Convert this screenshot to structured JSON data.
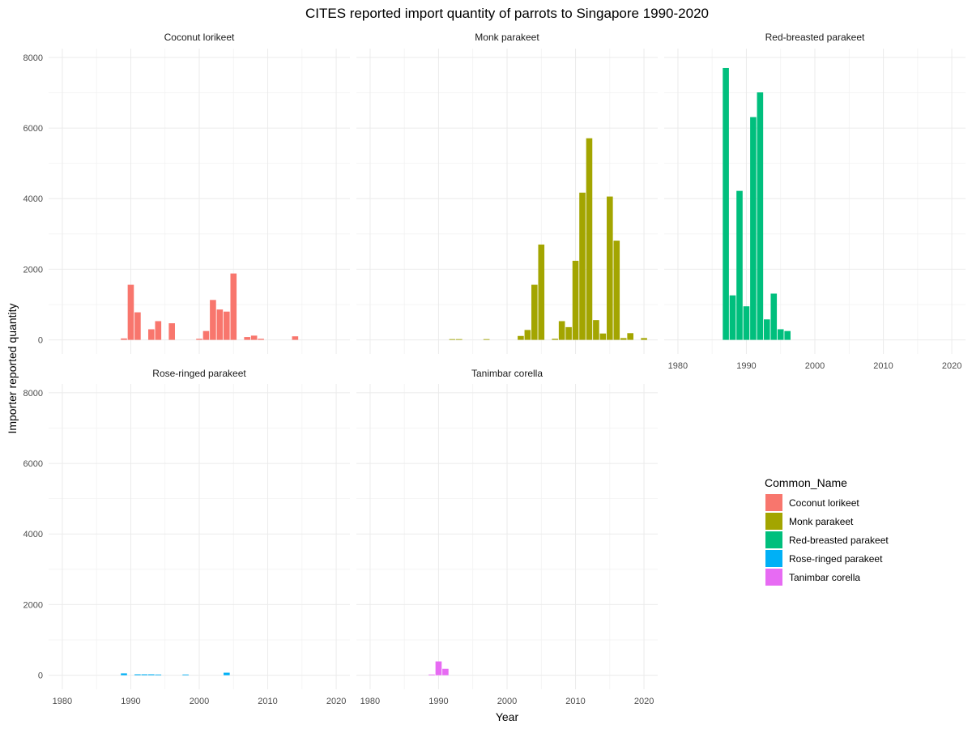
{
  "chart_data": {
    "type": "bar",
    "title": "CITES reported import quantity of parrots to Singapore 1990-2020",
    "xlabel": "Year",
    "ylabel": "Importer reported quantity",
    "xlim": [
      1978,
      2022
    ],
    "ylim": [
      0,
      8000
    ],
    "xticks": [
      1980,
      1990,
      2000,
      2010,
      2020
    ],
    "yticks": [
      0,
      2000,
      4000,
      6000,
      8000
    ],
    "grid": true,
    "legend_title": "Common_Name",
    "legend_position": "right",
    "series": [
      {
        "name": "Coconut lorikeet",
        "color": "#F8766D",
        "points": [
          [
            1989,
            40
          ],
          [
            1990,
            1560
          ],
          [
            1991,
            780
          ],
          [
            1993,
            300
          ],
          [
            1994,
            530
          ],
          [
            1996,
            470
          ],
          [
            2000,
            30
          ],
          [
            2001,
            250
          ],
          [
            2002,
            1130
          ],
          [
            2003,
            860
          ],
          [
            2004,
            800
          ],
          [
            2005,
            1880
          ],
          [
            2007,
            80
          ],
          [
            2008,
            120
          ],
          [
            2009,
            30
          ],
          [
            2014,
            100
          ]
        ]
      },
      {
        "name": "Monk parakeet",
        "color": "#A3A500",
        "points": [
          [
            1992,
            20
          ],
          [
            1993,
            20
          ],
          [
            1997,
            20
          ],
          [
            2002,
            110
          ],
          [
            2003,
            280
          ],
          [
            2004,
            1560
          ],
          [
            2005,
            2700
          ],
          [
            2007,
            30
          ],
          [
            2008,
            530
          ],
          [
            2009,
            360
          ],
          [
            2010,
            2240
          ],
          [
            2011,
            4170
          ],
          [
            2012,
            5710
          ],
          [
            2013,
            560
          ],
          [
            2014,
            180
          ],
          [
            2015,
            4060
          ],
          [
            2016,
            2810
          ],
          [
            2017,
            50
          ],
          [
            2018,
            190
          ],
          [
            2020,
            50
          ]
        ]
      },
      {
        "name": "Red-breasted parakeet",
        "color": "#00BF7D",
        "points": [
          [
            1987,
            7700
          ],
          [
            1988,
            1260
          ],
          [
            1989,
            4220
          ],
          [
            1990,
            950
          ],
          [
            1991,
            6310
          ],
          [
            1992,
            7010
          ],
          [
            1993,
            580
          ],
          [
            1994,
            1310
          ],
          [
            1995,
            300
          ],
          [
            1996,
            250
          ]
        ]
      },
      {
        "name": "Rose-ringed parakeet",
        "color": "#00B0F6",
        "points": [
          [
            1989,
            50
          ],
          [
            1991,
            25
          ],
          [
            1992,
            25
          ],
          [
            1993,
            25
          ],
          [
            1994,
            20
          ],
          [
            1998,
            20
          ],
          [
            2004,
            70
          ]
        ]
      },
      {
        "name": "Tanimbar corella",
        "color": "#E76BF3",
        "points": [
          [
            1989,
            20
          ],
          [
            1990,
            390
          ],
          [
            1991,
            180
          ]
        ]
      }
    ]
  }
}
